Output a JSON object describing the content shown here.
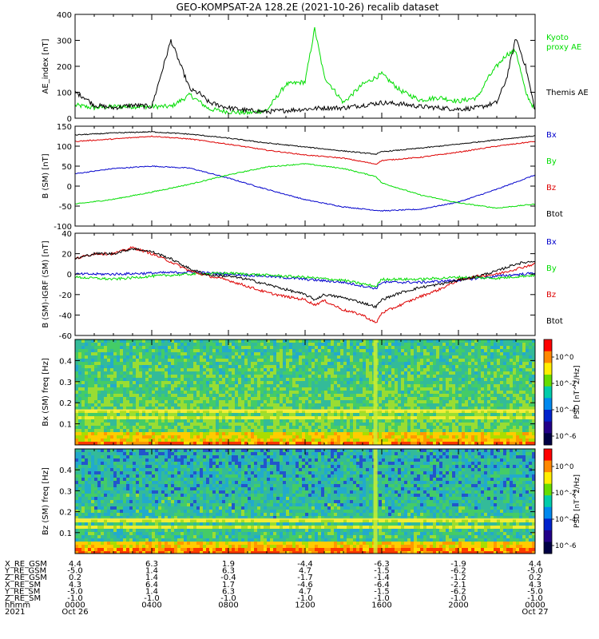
{
  "title": "GEO-KOMPSAT-2A 128.2E (2021-10-26) recalib dataset",
  "colors": {
    "black": "#000000",
    "red": "#dd0000",
    "green": "#00dd00",
    "blue": "#0000cc"
  },
  "chart_data": [
    {
      "type": "line",
      "ylabel": "AE_index [nT]",
      "ylim": [
        0,
        400
      ],
      "yticks": [
        0,
        100,
        200,
        300,
        400
      ],
      "legend": [
        {
          "text": "Kyoto",
          "color": "green"
        },
        {
          "text": "proxy AE",
          "color": "green"
        },
        {
          "text": "Themis AE",
          "color": "black"
        }
      ],
      "series": [
        {
          "name": "Kyoto proxy AE",
          "color": "green",
          "x": [
            0,
            0.5,
            1,
            2,
            3,
            4,
            5,
            6,
            7,
            8,
            9,
            10,
            11,
            12,
            12.5,
            13,
            14,
            15,
            16,
            17,
            18,
            19,
            20,
            21,
            21.5,
            22,
            22.5,
            23,
            23.5,
            24
          ],
          "y": [
            50,
            45,
            40,
            45,
            45,
            45,
            45,
            90,
            35,
            25,
            20,
            30,
            130,
            140,
            345,
            160,
            60,
            130,
            170,
            105,
            70,
            80,
            65,
            80,
            150,
            200,
            245,
            260,
            100,
            30
          ]
        },
        {
          "name": "Themis AE",
          "color": "black",
          "x": [
            0,
            0.5,
            1,
            2,
            3,
            4,
            5,
            6,
            6.5,
            7,
            8,
            9,
            10,
            11,
            12,
            13,
            14,
            15,
            16,
            17,
            18,
            19,
            20,
            21,
            22,
            22.5,
            23,
            23.5,
            24
          ],
          "y": [
            100,
            80,
            50,
            40,
            50,
            45,
            300,
            110,
            95,
            60,
            40,
            30,
            25,
            30,
            35,
            40,
            40,
            50,
            60,
            55,
            45,
            40,
            35,
            40,
            60,
            150,
            310,
            200,
            30
          ]
        }
      ]
    },
    {
      "type": "line",
      "ylabel": "B (SM) [nT]",
      "ylim": [
        -100,
        150
      ],
      "yticks": [
        -100,
        -50,
        0,
        50,
        100,
        150
      ],
      "legend": [
        {
          "text": "Bx",
          "color": "blue"
        },
        {
          "text": "By",
          "color": "green"
        },
        {
          "text": "Bz",
          "color": "red"
        },
        {
          "text": "Btot",
          "color": "black"
        }
      ],
      "series": [
        {
          "name": "Bx",
          "color": "blue",
          "x": [
            0,
            2,
            4,
            6,
            8,
            10,
            12,
            14,
            16,
            18,
            20,
            22,
            24
          ],
          "y": [
            31,
            44,
            50,
            45,
            20,
            -8,
            -34,
            -52,
            -62,
            -58,
            -40,
            -8,
            28
          ]
        },
        {
          "name": "By",
          "color": "green",
          "x": [
            0,
            2,
            4,
            6,
            8,
            10,
            12,
            14,
            15.7,
            16,
            18,
            20,
            22,
            24
          ],
          "y": [
            -45,
            -33,
            -15,
            5,
            28,
            48,
            56,
            44,
            24,
            8,
            -22,
            -42,
            -55,
            -45
          ]
        },
        {
          "name": "Bz",
          "color": "red",
          "x": [
            0,
            2,
            4,
            6,
            8,
            10,
            12,
            14,
            15.7,
            16,
            18,
            20,
            22,
            24
          ],
          "y": [
            112,
            118,
            125,
            118,
            105,
            90,
            78,
            70,
            55,
            64,
            72,
            85,
            100,
            112
          ]
        },
        {
          "name": "Btot",
          "color": "black",
          "x": [
            0,
            2,
            4,
            6,
            8,
            10,
            12,
            14,
            15.7,
            16,
            18,
            20,
            22,
            24
          ],
          "y": [
            128,
            133,
            136,
            130,
            120,
            108,
            98,
            88,
            80,
            86,
            95,
            105,
            116,
            126
          ]
        }
      ]
    },
    {
      "type": "line",
      "ylabel": "B (SM)-IGRF (SM) [nT]",
      "ylim": [
        -60,
        40
      ],
      "yticks": [
        -60,
        -40,
        -20,
        0,
        20,
        40
      ],
      "legend": [
        {
          "text": "Bx",
          "color": "blue"
        },
        {
          "text": "By",
          "color": "green"
        },
        {
          "text": "Bz",
          "color": "red"
        },
        {
          "text": "Btot",
          "color": "black"
        }
      ],
      "series": [
        {
          "name": "Bx",
          "color": "blue",
          "x": [
            0,
            2,
            4,
            6,
            8,
            10,
            12,
            14,
            15.7,
            16,
            18,
            20,
            22,
            24
          ],
          "y": [
            0,
            0,
            1,
            2,
            0,
            -2,
            -5,
            -8,
            -14,
            -8,
            -8,
            -6,
            -2,
            1
          ]
        },
        {
          "name": "By",
          "color": "green",
          "x": [
            0,
            2,
            4,
            6,
            8,
            10,
            12,
            14,
            15.7,
            16,
            18,
            20,
            22,
            24
          ],
          "y": [
            -3,
            -5,
            -2,
            0,
            1,
            -1,
            -3,
            -6,
            -12,
            -5,
            -5,
            -3,
            -4,
            -1
          ]
        },
        {
          "name": "Bz",
          "color": "red",
          "x": [
            0,
            1,
            2,
            3,
            4,
            5,
            6,
            7,
            8,
            9,
            10,
            11,
            12,
            12.5,
            13,
            14,
            15,
            15.7,
            16,
            17,
            18,
            19,
            20,
            21,
            22,
            23,
            24
          ],
          "y": [
            15,
            20,
            20,
            26,
            20,
            12,
            3,
            -2,
            -6,
            -12,
            -18,
            -22,
            -25,
            -30,
            -26,
            -35,
            -40,
            -48,
            -38,
            -30,
            -22,
            -15,
            -6,
            -2,
            0,
            5,
            10
          ]
        },
        {
          "name": "Btot",
          "color": "black",
          "x": [
            0,
            1,
            2,
            3,
            4,
            5,
            6,
            7,
            8,
            9,
            10,
            11,
            12,
            12.5,
            13,
            14,
            15,
            15.7,
            16,
            17,
            18,
            19,
            20,
            21,
            22,
            23,
            24
          ],
          "y": [
            15,
            20,
            20,
            25,
            22,
            15,
            5,
            -1,
            -2,
            -5,
            -10,
            -15,
            -20,
            -25,
            -20,
            -23,
            -28,
            -32,
            -25,
            -18,
            -13,
            -10,
            -6,
            -2,
            3,
            10,
            13
          ]
        }
      ]
    },
    {
      "type": "heatmap",
      "ylabel": "Bx (SM) freq [Hz]",
      "ylim": [
        0,
        0.5
      ],
      "yticks": [
        0.1,
        0.2,
        0.3,
        0.4
      ],
      "colorbar": {
        "label": "PSD [nT^2/Hz]",
        "ticks": [
          "10^0",
          "10^-2",
          "10^-4",
          "10^-6"
        ]
      }
    },
    {
      "type": "heatmap",
      "ylabel": "Bz (SM) freq [Hz]",
      "ylim": [
        0,
        0.5
      ],
      "yticks": [
        0.1,
        0.2,
        0.3,
        0.4
      ],
      "colorbar": {
        "label": "PSD [nT^2/Hz]",
        "ticks": [
          "10^0",
          "10^-2",
          "10^-4",
          "10^-6"
        ]
      }
    }
  ],
  "xaxis": {
    "rows": [
      {
        "label": "X_RE_GSM",
        "values": [
          "4.4",
          "6.3",
          "1.9",
          "-4.4",
          "-6.3",
          "-1.9",
          "4.4"
        ]
      },
      {
        "label": "Y_RE_GSM",
        "values": [
          "-5.0",
          "1.4",
          "6.3",
          "4.7",
          "-1.5",
          "-6.2",
          "-5.0"
        ]
      },
      {
        "label": "Z_RE_GSM",
        "values": [
          "0.2",
          "1.4",
          "-0.4",
          "-1.7",
          "-1.4",
          "-1.2",
          "0.2"
        ]
      },
      {
        "label": "X_RE_SM",
        "values": [
          "4.3",
          "6.4",
          "1.7",
          "-4.6",
          "-6.4",
          "-2.1",
          "4.3"
        ]
      },
      {
        "label": "Y_RE_SM",
        "values": [
          "-5.0",
          "1.4",
          "6.3",
          "4.7",
          "-1.5",
          "-6.2",
          "-5.0"
        ]
      },
      {
        "label": "Z_RE_SM",
        "values": [
          "-1.0",
          "-1.0",
          "-1.0",
          "-1.0",
          "-1.0",
          "-1.0",
          "-1.0"
        ]
      },
      {
        "label": "hhmm",
        "values": [
          "0000",
          "0400",
          "0800",
          "1200",
          "1600",
          "2000",
          "0000"
        ]
      },
      {
        "label": "2021",
        "values": [
          "Oct 26",
          "",
          "",
          "",
          "",
          "",
          "Oct 27"
        ]
      }
    ]
  }
}
